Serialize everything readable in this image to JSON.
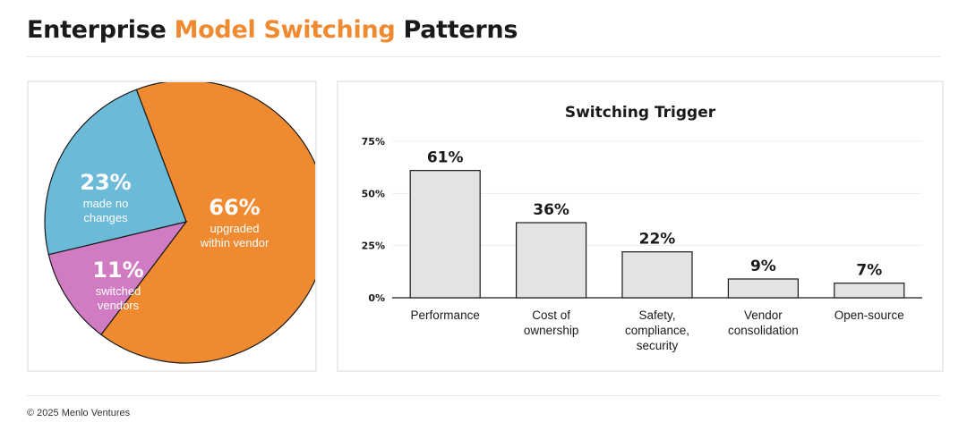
{
  "header": {
    "title_pre": "Enterprise ",
    "title_accent": "Model Switching",
    "title_post": " Patterns",
    "accent_color": "#ef8a30"
  },
  "footer": {
    "copyright": "© 2025 Menlo Ventures"
  },
  "chart_data": [
    {
      "type": "pie",
      "slices": [
        {
          "value": 66,
          "pct_label": "66%",
          "label_lines": [
            "upgraded",
            "within vendor"
          ],
          "color": "#ef8a30"
        },
        {
          "value": 11,
          "pct_label": "11%",
          "label_lines": [
            "switched",
            "vendors"
          ],
          "color": "#d17bc2"
        },
        {
          "value": 23,
          "pct_label": "23%",
          "label_lines": [
            "made no",
            "changes"
          ],
          "color": "#6bbad8"
        }
      ]
    },
    {
      "type": "bar",
      "title": "Switching Trigger",
      "categories": [
        [
          "Performance"
        ],
        [
          "Cost of",
          "ownership"
        ],
        [
          "Safety,",
          "compliance,",
          "security"
        ],
        [
          "Vendor",
          "consolidation"
        ],
        [
          "Open-source"
        ]
      ],
      "values": [
        61,
        36,
        22,
        9,
        7
      ],
      "value_labels": [
        "61%",
        "36%",
        "22%",
        "9%",
        "7%"
      ],
      "ylim": [
        0,
        75
      ],
      "yticks": [
        0,
        25,
        50,
        75
      ],
      "ytick_labels": [
        "0%",
        "25%",
        "50%",
        "75%"
      ],
      "bar_color": "#e3e3e5",
      "grid": true
    }
  ]
}
